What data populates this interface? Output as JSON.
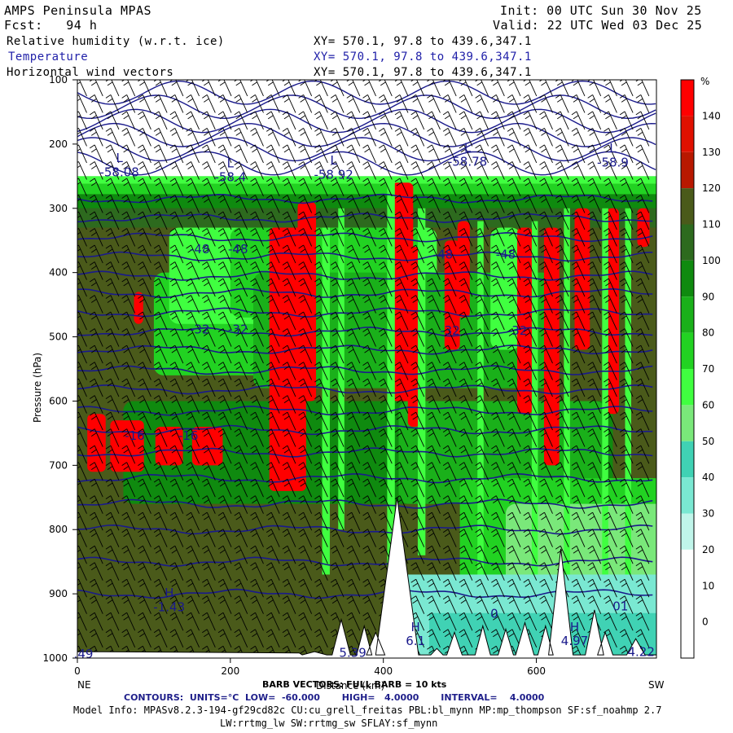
{
  "header": {
    "title": "AMPS Peninsula MPAS",
    "forecast": "Fcst:   94 h",
    "init": "Init: 00 UTC Sun 30 Nov 25",
    "valid": "Valid: 22 UTC Wed 03 Dec 25",
    "field1": "Relative humidity (w.r.t. ice)",
    "field2": "Temperature",
    "field3": "Horizontal wind vectors",
    "xy1": "XY= 570.1, 97.8 to 439.6,347.1",
    "xy2": "XY= 570.1, 97.8 to 439.6,347.1",
    "xy3": "XY= 570.1, 97.8 to 439.6,347.1"
  },
  "footer": {
    "barb": "BARB VECTORS: FULL BARB = 10 kts",
    "contours": "CONTOURS:  UNITS=°C  LOW=  -60.000       HIGH=   4.0000       INTERVAL=    4.0000",
    "model_info": "Model Info: MPASv8.2.3-194-gf29cd82c CU:cu_grell_freitas PBL:bl_mynn MP:mp_thompson SF:sf_noahmp 2.7",
    "model_info2": "LW:rrtmg_lw SW:rrtmg_sw SFLAY:sf_mynn"
  },
  "colors": {
    "temp_contour": "#1a1a8c",
    "barb": "#000000",
    "terrain": "#ffffff"
  },
  "chart_data": {
    "type": "heatmap",
    "title": "Relative humidity (w.r.t. ice)",
    "xlabel": "Distance (km)",
    "ylabel": "Pressure (hPa)",
    "x_ticks": [
      "0",
      "200",
      "400",
      "600"
    ],
    "xlim": [
      0,
      757
    ],
    "y_ticks": [
      "100",
      "200",
      "300",
      "400",
      "500",
      "600",
      "700",
      "800",
      "900",
      "1000"
    ],
    "ylim": [
      1000,
      100
    ],
    "endpoints": {
      "left": "NE",
      "right": "SW"
    },
    "colorbar": {
      "unit": "%",
      "labels": [
        "140",
        "130",
        "120",
        "110",
        "100",
        "90",
        "80",
        "70",
        "60",
        "50",
        "40",
        "30",
        "20",
        "10",
        "0"
      ],
      "colors": [
        "#ff0000",
        "#e01000",
        "#b81800",
        "#4a5a1a",
        "#2d6a1e",
        "#0f8a0f",
        "#1ab01a",
        "#22d222",
        "#40ff40",
        "#7ae87a",
        "#40d2b4",
        "#7ae8d2",
        "#c0f5ea",
        "#ffffff",
        "#ffffff",
        "#ffffff"
      ]
    },
    "temperature_labels": [
      {
        "text": "L",
        "x": 55,
        "p": 228
      },
      {
        "text": "-58.08",
        "x": 55,
        "p": 250
      },
      {
        "text": "L",
        "x": 200,
        "p": 236
      },
      {
        "text": "-58.4",
        "x": 200,
        "p": 258
      },
      {
        "text": "L",
        "x": 335,
        "p": 232
      },
      {
        "text": "-58.92",
        "x": 335,
        "p": 254
      },
      {
        "text": "L",
        "x": 510,
        "p": 212
      },
      {
        "text": "-58.78",
        "x": 510,
        "p": 234
      },
      {
        "text": "L",
        "x": 700,
        "p": 213
      },
      {
        "text": "-58.9",
        "x": 700,
        "p": 235
      },
      {
        "text": "-48",
        "x": 160,
        "p": 370
      },
      {
        "text": "-48",
        "x": 210,
        "p": 370
      },
      {
        "text": "-48",
        "x": 478,
        "p": 378
      },
      {
        "text": "-48",
        "x": 560,
        "p": 378
      },
      {
        "text": "-32",
        "x": 160,
        "p": 495
      },
      {
        "text": "-32",
        "x": 210,
        "p": 495
      },
      {
        "text": "-32",
        "x": 487,
        "p": 497
      },
      {
        "text": "-32",
        "x": 575,
        "p": 497
      },
      {
        "text": "-16",
        "x": 75,
        "p": 660
      },
      {
        "text": "-16",
        "x": 145,
        "p": 660
      },
      {
        "text": "H",
        "x": 120,
        "p": 905
      },
      {
        "text": "-1.43",
        "x": 120,
        "p": 927
      },
      {
        "text": "0",
        "x": 545,
        "p": 937
      },
      {
        "text": "01",
        "x": 710,
        "p": 926
      },
      {
        "text": "H",
        "x": 442,
        "p": 958
      },
      {
        "text": "6.1",
        "x": 442,
        "p": 980
      },
      {
        "text": "H",
        "x": 650,
        "p": 958
      },
      {
        "text": "4.97",
        "x": 650,
        "p": 980
      },
      {
        "text": ".49",
        "x": 8,
        "p": 1000
      },
      {
        "text": "5.39",
        "x": 360,
        "p": 998
      },
      {
        "text": "4.22",
        "x": 737,
        "p": 997
      }
    ]
  }
}
